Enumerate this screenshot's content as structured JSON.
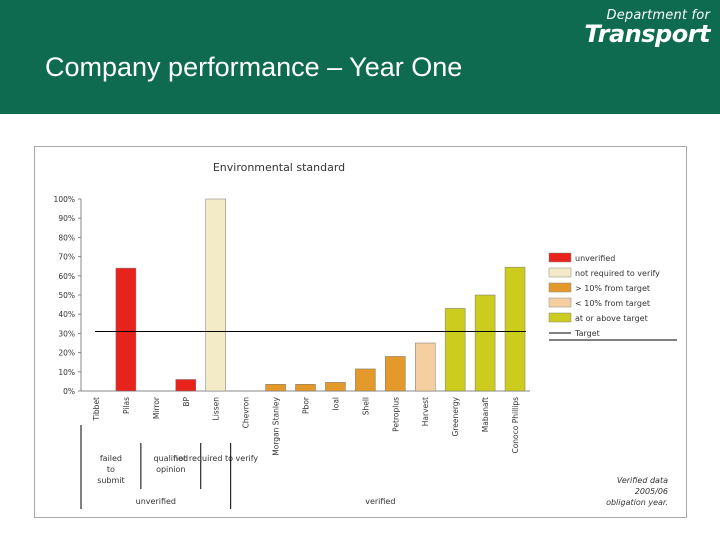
{
  "header": {
    "title": "Company performance – Year One",
    "logo_top": "Department for",
    "logo_main": "Transport"
  },
  "colors": {
    "header_bg": "#0e6b4f",
    "unverified": "#e8231c",
    "not_required": "#f3ebc8",
    "over10": "#e39a2a",
    "under10": "#f6cfa0",
    "on_target": "#cccc1f",
    "target_line": "#000000"
  },
  "chart_data": {
    "type": "bar",
    "title": "Environmental standard",
    "categories": [
      "Tibbet",
      "Pilas",
      "Mirror",
      "BP",
      "Lissen",
      "Chevron",
      "Morgan Stanley",
      "Pbor",
      "Ioal",
      "Shell",
      "Petroplus",
      "Harvest",
      "Greenergy",
      "Mabanaft",
      "Conoco Phillips"
    ],
    "values": [
      0,
      64,
      0,
      6,
      100,
      0,
      3.5,
      3.5,
      4.5,
      11.5,
      18,
      25,
      43,
      50,
      64.5
    ],
    "colors": [
      "#e8231c",
      "#e8231c",
      "#e8231c",
      "#e8231c",
      "#f3ebc8",
      "#f3ebc8",
      "#e39a2a",
      "#e39a2a",
      "#e39a2a",
      "#e39a2a",
      "#e39a2a",
      "#f6cfa0",
      "#cccc1f",
      "#cccc1f",
      "#cccc1f"
    ],
    "target": 31,
    "ylim": [
      0,
      100
    ],
    "yticks": [
      "0%",
      "10%",
      "20%",
      "30%",
      "40%",
      "50%",
      "60%",
      "70%",
      "80%",
      "90%",
      "100%"
    ],
    "legend_position": "right",
    "legend": [
      {
        "label": "unverified",
        "color": "#e8231c",
        "kind": "box"
      },
      {
        "label": "not required to verify",
        "color": "#f3ebc8",
        "kind": "box"
      },
      {
        "label": "> 10% from target",
        "color": "#e39a2a",
        "kind": "box"
      },
      {
        "label": "< 10% from target",
        "color": "#f6cfa0",
        "kind": "box"
      },
      {
        "label": "at or above target",
        "color": "#cccc1f",
        "kind": "box"
      },
      {
        "label": "Target",
        "color": "#000000",
        "kind": "line"
      }
    ],
    "group_labels": [
      {
        "text": "failed to submit",
        "from": 0,
        "to": 1
      },
      {
        "text": "qualified opinion",
        "from": 2,
        "to": 3
      },
      {
        "text": "not required to verify",
        "from": 4,
        "to": 4
      }
    ],
    "outer_groups": [
      {
        "text": "unverified",
        "from": 0,
        "to": 4
      },
      {
        "text": "verified",
        "from": 5,
        "to": 14
      }
    ],
    "note": "Verified data 2005/06 obligation year."
  }
}
